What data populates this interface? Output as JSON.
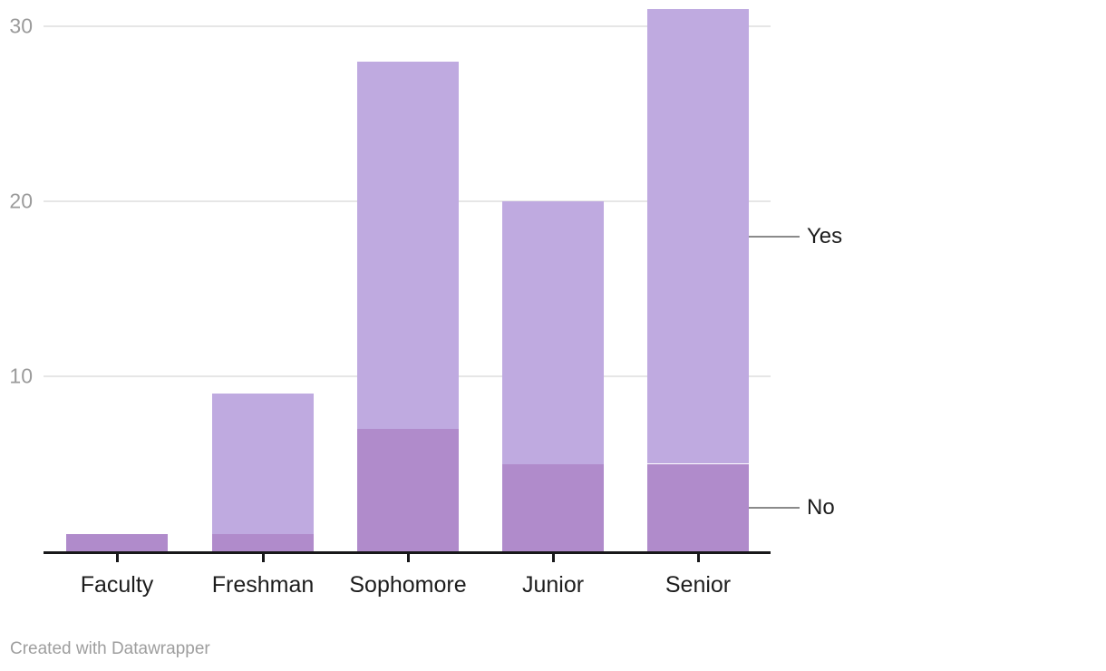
{
  "chart_data": {
    "type": "bar",
    "variant": "stacked-column",
    "categories": [
      "Faculty",
      "Freshman",
      "Sophomore",
      "Junior",
      "Senior"
    ],
    "series": [
      {
        "name": "No",
        "color": "#b08bcb",
        "values": [
          1,
          1,
          7,
          5,
          5
        ]
      },
      {
        "name": "Yes",
        "color": "#bfaae0",
        "values": [
          0,
          8,
          21,
          15,
          26
        ]
      }
    ],
    "stack_totals": [
      1,
      9,
      28,
      20,
      31
    ],
    "y_axis": {
      "ticks": [
        10,
        20,
        30
      ],
      "range": [
        0,
        31.5
      ],
      "grid": true
    },
    "legend": {
      "position": "right-of-last-bar",
      "entries": [
        "Yes",
        "No"
      ]
    },
    "title": "",
    "xlabel": "",
    "ylabel": ""
  },
  "legend": {
    "yes_label": "Yes",
    "no_label": "No"
  },
  "footer": {
    "credit_text": "Created with Datawrapper"
  },
  "colors": {
    "series_no": "#b08bcb",
    "series_yes": "#bfaae0",
    "gridline": "#e6e6e6",
    "axis_line": "#18181a",
    "ytick_text": "#9b9b9b",
    "category_text": "#1d1d1d",
    "leader_line": "#8a8a8a",
    "footer_text": "#9e9e9e"
  }
}
